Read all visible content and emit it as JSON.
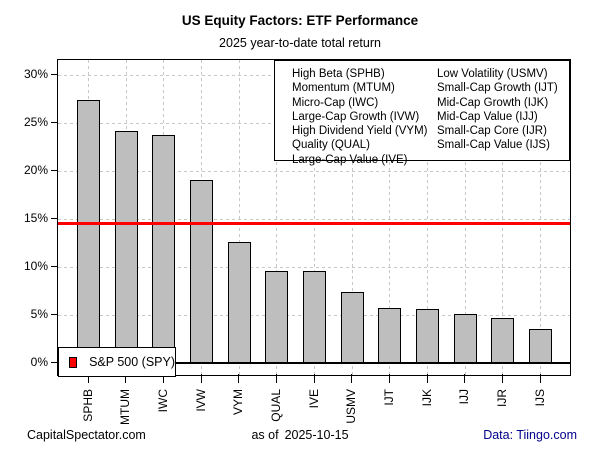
{
  "chart_data": {
    "type": "bar",
    "title": "US Equity Factors: ETF Performance",
    "subtitle": "2025 year-to-date total return",
    "categories": [
      "SPHB",
      "MTUM",
      "IWC",
      "IVW",
      "VYM",
      "QUAL",
      "IVE",
      "USMV",
      "IJT",
      "IJK",
      "IJJ",
      "IJR",
      "IJS"
    ],
    "values": [
      27.4,
      24.2,
      23.8,
      19.1,
      12.7,
      9.6,
      9.6,
      7.4,
      5.8,
      5.7,
      5.2,
      4.7,
      3.6
    ],
    "xlabel": "",
    "ylabel": "",
    "y_ticks": [
      0,
      5,
      10,
      15,
      20,
      25,
      30
    ],
    "y_tick_labels": [
      "0%",
      "5%",
      "10%",
      "15%",
      "20%",
      "25%",
      "30%"
    ],
    "ylim": [
      -1.2,
      31.6
    ],
    "bar_fill": "#bebebe",
    "bar_border": "#000000",
    "grid": {
      "style": "dashed",
      "color": "#c8c8c8",
      "horizontal": true,
      "vertical": true
    },
    "reference_line": {
      "label": "S&P 500 (SPY)",
      "value": 14.6,
      "color": "#ff0000"
    },
    "legend_position": "top-right",
    "factor_legend": {
      "col1": [
        "High Beta (SPHB)",
        "Momentum (MTUM)",
        "Micro-Cap (IWC)",
        "Large-Cap Growth (IVW)",
        "High Dividend Yield (VYM)",
        "Quality (QUAL)",
        "Large-Cap Value (IVE)"
      ],
      "col2": [
        "Low Volatility (USMV)",
        "Small-Cap Growth (IJT)",
        "Mid-Cap Growth (IJK)",
        "Mid-Cap Value (IJJ)",
        "Small-Cap Core (IJR)",
        "Small-Cap Value (IJS)"
      ]
    }
  },
  "footer": {
    "left": "CapitalSpectator.com",
    "center_prefix": "as of",
    "center_date": "2025-10-15",
    "right": "Data: Tiingo.com",
    "right_color": "#00008b"
  }
}
